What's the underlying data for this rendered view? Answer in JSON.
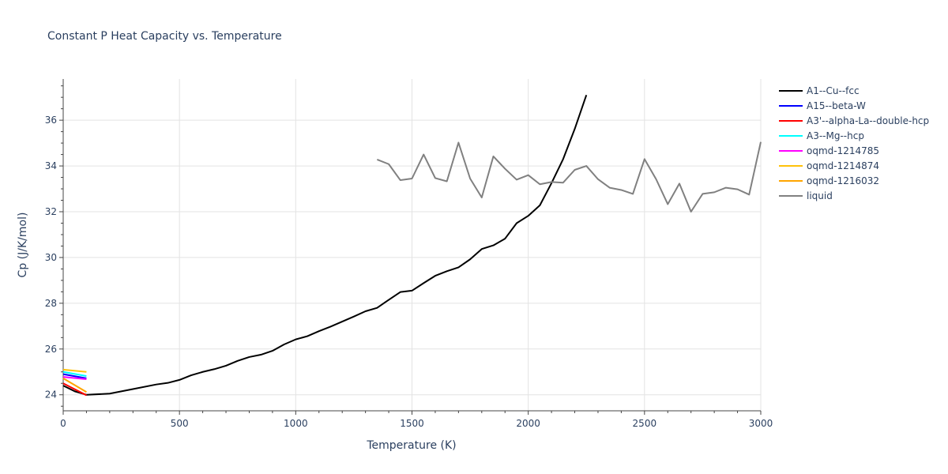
{
  "chart_data": {
    "type": "line",
    "title": "Constant P Heat Capacity vs. Temperature",
    "xlabel": "Temperature (K)",
    "ylabel": "Cp (J/K/mol)",
    "xlim": [
      0,
      3000
    ],
    "ylim": [
      23.3,
      37.8
    ],
    "xticks": [
      0,
      500,
      1000,
      1500,
      2000,
      2500,
      3000
    ],
    "yticks": [
      24,
      26,
      28,
      30,
      32,
      34,
      36
    ],
    "grid": true,
    "legend_position": "top-right",
    "series": [
      {
        "name": "A1--Cu--fcc",
        "color": "#000000",
        "x": [
          0,
          50,
          100,
          200,
          300,
          400,
          450,
          500,
          550,
          600,
          650,
          700,
          750,
          800,
          850,
          900,
          950,
          1000,
          1050,
          1100,
          1150,
          1200,
          1250,
          1300,
          1350,
          1400,
          1450,
          1500,
          1550,
          1600,
          1650,
          1700,
          1750,
          1800,
          1850,
          1900,
          1950,
          2000,
          2050,
          2100,
          2150,
          2200,
          2250
        ],
        "y": [
          24.4,
          24.15,
          24.0,
          24.05,
          24.25,
          24.45,
          24.52,
          24.65,
          24.85,
          25.0,
          25.12,
          25.27,
          25.48,
          25.65,
          25.75,
          25.92,
          26.2,
          26.42,
          26.56,
          26.78,
          26.98,
          27.2,
          27.42,
          27.65,
          27.8,
          28.15,
          28.49,
          28.55,
          28.88,
          29.2,
          29.4,
          29.57,
          29.92,
          30.37,
          30.53,
          30.82,
          31.5,
          31.82,
          32.28,
          33.25,
          34.3,
          35.62,
          37.1
        ]
      },
      {
        "name": "A15--beta-W",
        "color": "#0000ff",
        "x": [
          0,
          100
        ],
        "y": [
          24.9,
          24.72
        ]
      },
      {
        "name": "A3'--alpha-La--double-hcp",
        "color": "#ff0000",
        "x": [
          0,
          100
        ],
        "y": [
          24.5,
          23.98
        ]
      },
      {
        "name": "A3--Mg--hcp",
        "color": "#00ffff",
        "x": [
          0,
          100
        ],
        "y": [
          25.0,
          24.82
        ]
      },
      {
        "name": "oqmd-1214785",
        "color": "#ff00ff",
        "x": [
          0,
          100
        ],
        "y": [
          24.78,
          24.68
        ]
      },
      {
        "name": "oqmd-1214874",
        "color": "#ffc20a",
        "x": [
          0,
          100
        ],
        "y": [
          25.1,
          25.0
        ]
      },
      {
        "name": "oqmd-1216032",
        "color": "#ffa500",
        "x": [
          0,
          100
        ],
        "y": [
          24.72,
          24.12
        ]
      },
      {
        "name": "liquid",
        "color": "#808080",
        "x": [
          1350,
          1400,
          1450,
          1500,
          1550,
          1600,
          1650,
          1700,
          1750,
          1800,
          1850,
          1900,
          1950,
          2000,
          2050,
          2100,
          2150,
          2200,
          2250,
          2300,
          2350,
          2400,
          2450,
          2500,
          2550,
          2600,
          2650,
          2700,
          2750,
          2800,
          2850,
          2900,
          2950,
          3000
        ],
        "y": [
          34.28,
          34.08,
          33.38,
          33.45,
          34.5,
          33.47,
          33.33,
          35.02,
          33.45,
          32.62,
          34.42,
          33.88,
          33.4,
          33.6,
          33.2,
          33.3,
          33.27,
          33.83,
          34.0,
          33.42,
          33.05,
          32.95,
          32.78,
          34.3,
          33.42,
          32.33,
          33.23,
          32.0,
          32.78,
          32.85,
          33.05,
          32.98,
          32.75,
          35.05
        ]
      }
    ]
  }
}
